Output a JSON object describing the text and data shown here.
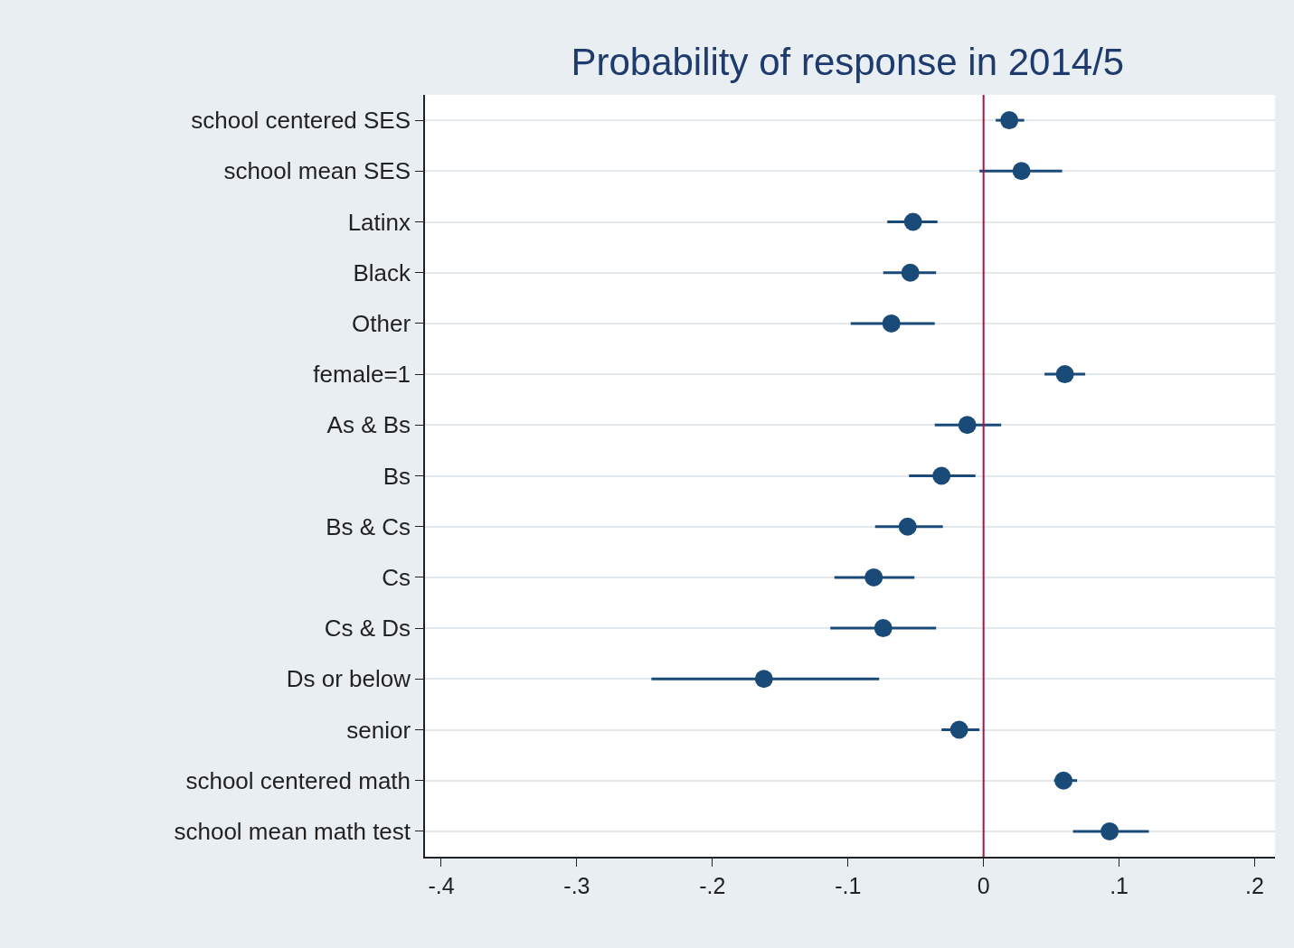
{
  "chart_data": {
    "type": "scatter",
    "orientation": "horizontal",
    "title": "Probability of response in 2014/5",
    "categories": [
      "school centered SES",
      "school mean SES",
      "Latinx",
      "Black",
      "Other",
      "female=1",
      "As & Bs",
      "Bs",
      "Bs & Cs",
      "Cs",
      "Cs & Ds",
      "Ds or below",
      "senior",
      "school centered math",
      "school mean math test"
    ],
    "values": [
      0.019,
      0.028,
      -0.052,
      -0.054,
      -0.068,
      0.06,
      -0.012,
      -0.031,
      -0.056,
      -0.081,
      -0.074,
      -0.162,
      -0.018,
      0.059,
      0.093
    ],
    "errors": [
      [
        0.009,
        0.03
      ],
      [
        -0.003,
        0.058
      ],
      [
        -0.071,
        -0.034
      ],
      [
        -0.074,
        -0.035
      ],
      [
        -0.098,
        -0.036
      ],
      [
        0.045,
        0.075
      ],
      [
        -0.036,
        0.013
      ],
      [
        -0.055,
        -0.006
      ],
      [
        -0.08,
        -0.03
      ],
      [
        -0.11,
        -0.051
      ],
      [
        -0.113,
        -0.035
      ],
      [
        -0.245,
        -0.077
      ],
      [
        -0.031,
        -0.003
      ],
      [
        0.052,
        0.069
      ],
      [
        0.066,
        0.122
      ]
    ],
    "color": "#1a4a78",
    "marker": "circle",
    "xlim": [
      -0.412,
      0.215
    ],
    "xticks": [
      {
        "value": -0.4,
        "label": "-.4"
      },
      {
        "value": -0.3,
        "label": "-.3"
      },
      {
        "value": -0.2,
        "label": "-.2"
      },
      {
        "value": -0.1,
        "label": "-.1"
      },
      0,
      {
        "value": 0.1,
        "label": ".1"
      },
      {
        "value": 0.2,
        "label": ".2"
      }
    ],
    "ref_lines": [
      {
        "axis": "x",
        "value": 0,
        "color": "#b0103a"
      }
    ],
    "grid": "y"
  }
}
